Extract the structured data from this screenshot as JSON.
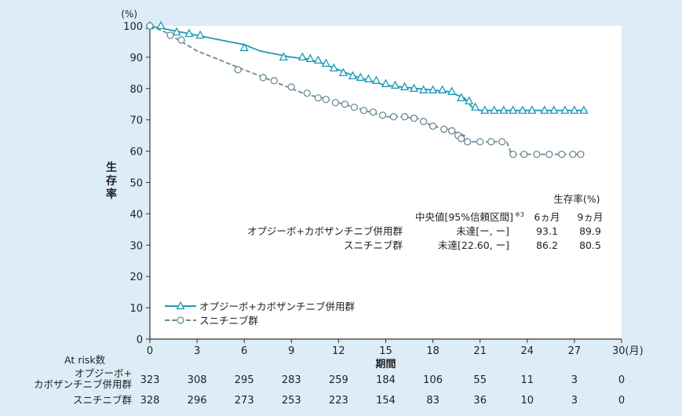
{
  "chart_data": {
    "type": "line",
    "y_unit": "(%)",
    "ylabel": "生存率",
    "xlabel": "期間",
    "x_unit": "30(月)",
    "xlim": [
      0,
      30
    ],
    "ylim": [
      0,
      100
    ],
    "x_ticks": [
      "0",
      "3",
      "6",
      "9",
      "12",
      "15",
      "18",
      "21",
      "24",
      "27"
    ],
    "y_ticks": [
      "0",
      "10",
      "20",
      "30",
      "40",
      "50",
      "60",
      "70",
      "80",
      "90",
      "100"
    ],
    "grid": false,
    "legend_position": "bottom-left",
    "colors": {
      "series1": "#1a9ab5",
      "series2": "#6d8a95",
      "background": "#dcedf8"
    },
    "series": [
      {
        "name": "オプジーボ+カボザンチニブ併用群",
        "marker": "triangle",
        "line": "solid",
        "points": [
          [
            0,
            100
          ],
          [
            1,
            99
          ],
          [
            2,
            98
          ],
          [
            3,
            97
          ],
          [
            4,
            96
          ],
          [
            5,
            95
          ],
          [
            6,
            94
          ],
          [
            7,
            92
          ],
          [
            8,
            91
          ],
          [
            9,
            90
          ],
          [
            10,
            89.5
          ],
          [
            11,
            88
          ],
          [
            12,
            86
          ],
          [
            13,
            84
          ],
          [
            14,
            82.5
          ],
          [
            15,
            81
          ],
          [
            16,
            80.5
          ],
          [
            17,
            80
          ],
          [
            18,
            79.5
          ],
          [
            19,
            79
          ],
          [
            20,
            77
          ],
          [
            20.5,
            74
          ],
          [
            21,
            73
          ],
          [
            22,
            73
          ],
          [
            24,
            73
          ],
          [
            25,
            73
          ],
          [
            27,
            73
          ],
          [
            27.8,
            73
          ]
        ],
        "censor_marks": [
          [
            0,
            100
          ],
          [
            0.7,
            100
          ],
          [
            1.7,
            98
          ],
          [
            2.5,
            97.5
          ],
          [
            3.2,
            97
          ],
          [
            6,
            93
          ],
          [
            8.5,
            90
          ],
          [
            9.7,
            90
          ],
          [
            10.2,
            89.5
          ],
          [
            10.7,
            89
          ],
          [
            11.2,
            88
          ],
          [
            11.7,
            86.5
          ],
          [
            12.3,
            85
          ],
          [
            12.9,
            84
          ],
          [
            13.4,
            83.5
          ],
          [
            13.9,
            83
          ],
          [
            14.4,
            82.5
          ],
          [
            15,
            81.5
          ],
          [
            15.6,
            81
          ],
          [
            16.2,
            80.5
          ],
          [
            16.8,
            80
          ],
          [
            17.4,
            79.5
          ],
          [
            18,
            79.5
          ],
          [
            18.6,
            79.5
          ],
          [
            19.2,
            79
          ],
          [
            19.8,
            77
          ],
          [
            20.3,
            76
          ],
          [
            20.7,
            74
          ],
          [
            21.3,
            73
          ],
          [
            21.9,
            73
          ],
          [
            22.5,
            73
          ],
          [
            23.1,
            73
          ],
          [
            23.7,
            73
          ],
          [
            24.3,
            73
          ],
          [
            25.1,
            73
          ],
          [
            25.7,
            73
          ],
          [
            26.4,
            73
          ],
          [
            27,
            73
          ],
          [
            27.6,
            73
          ]
        ]
      },
      {
        "name": "スニチニブ群",
        "marker": "circle",
        "line": "dashed",
        "points": [
          [
            0,
            100
          ],
          [
            1,
            98
          ],
          [
            2,
            95
          ],
          [
            3,
            92
          ],
          [
            4,
            90
          ],
          [
            5,
            88
          ],
          [
            6,
            86
          ],
          [
            7,
            84
          ],
          [
            8,
            82
          ],
          [
            9,
            80
          ],
          [
            10,
            78
          ],
          [
            11,
            77
          ],
          [
            12,
            75.5
          ],
          [
            13,
            74
          ],
          [
            14,
            72.5
          ],
          [
            15,
            71
          ],
          [
            16,
            71
          ],
          [
            17,
            70.5
          ],
          [
            18,
            68
          ],
          [
            19,
            67
          ],
          [
            19.5,
            66
          ],
          [
            20,
            65
          ],
          [
            20.3,
            63
          ],
          [
            21,
            63
          ],
          [
            22,
            63
          ],
          [
            22.7,
            63
          ],
          [
            23,
            59
          ],
          [
            24,
            59
          ],
          [
            25,
            59
          ],
          [
            27,
            59
          ],
          [
            27.5,
            59
          ]
        ],
        "censor_marks": [
          [
            0,
            100
          ],
          [
            1.3,
            97
          ],
          [
            2,
            95.5
          ],
          [
            5.6,
            86
          ],
          [
            7.2,
            83.5
          ],
          [
            7.9,
            82.5
          ],
          [
            9,
            80.5
          ],
          [
            10,
            78.5
          ],
          [
            10.7,
            77
          ],
          [
            11.2,
            76.5
          ],
          [
            11.8,
            75.5
          ],
          [
            12.4,
            75
          ],
          [
            13,
            74
          ],
          [
            13.6,
            73
          ],
          [
            14.2,
            72.5
          ],
          [
            14.8,
            71.5
          ],
          [
            15.5,
            71
          ],
          [
            16.2,
            71
          ],
          [
            16.8,
            70.5
          ],
          [
            17.4,
            69.5
          ],
          [
            18,
            68
          ],
          [
            18.7,
            67
          ],
          [
            19.2,
            66.5
          ],
          [
            19.6,
            65
          ],
          [
            19.8,
            64
          ],
          [
            20.2,
            63
          ],
          [
            21,
            63
          ],
          [
            21.7,
            63
          ],
          [
            22.4,
            63
          ],
          [
            23.1,
            59
          ],
          [
            23.8,
            59
          ],
          [
            24.6,
            59
          ],
          [
            25.4,
            59
          ],
          [
            26.2,
            59
          ],
          [
            26.9,
            59
          ],
          [
            27.4,
            59
          ]
        ]
      }
    ],
    "median_table": {
      "header_top": "生存率(%)",
      "col_median": "中央値[95%信頼区間]",
      "col_median_note": "※3",
      "col_6m": "6ヵ月",
      "col_9m": "9ヵ月",
      "rows": [
        {
          "label": "オプジーボ+カボザンチニブ併用群",
          "median": "未達[ー, ー]",
          "m6": "93.1",
          "m9": "89.9"
        },
        {
          "label": "スニチニブ群",
          "median": "未達[22.60, ー]",
          "m6": "86.2",
          "m9": "80.5"
        }
      ]
    },
    "at_risk": {
      "title": "At risk数",
      "rows": [
        {
          "label": "オプジーボ+\nカボザンチニブ併用群",
          "values": [
            "323",
            "308",
            "295",
            "283",
            "259",
            "184",
            "106",
            "55",
            "11",
            "3",
            "0"
          ]
        },
        {
          "label": "スニチニブ群",
          "values": [
            "328",
            "296",
            "273",
            "253",
            "223",
            "154",
            "83",
            "36",
            "10",
            "3",
            "0"
          ]
        }
      ]
    }
  }
}
